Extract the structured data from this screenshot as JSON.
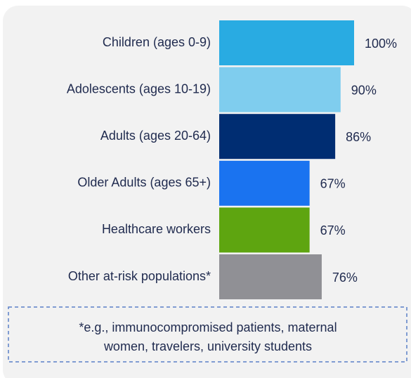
{
  "chart_data": {
    "type": "bar",
    "orientation": "horizontal",
    "categories": [
      "Children (ages 0-9)",
      "Adolescents (ages 10-19)",
      "Adults (ages 20-64)",
      "Older Adults (ages 65+)",
      "Healthcare workers",
      "Other at-risk populations*"
    ],
    "values": [
      100,
      90,
      86,
      67,
      67,
      76
    ],
    "value_labels": [
      "100%",
      "90%",
      "86%",
      "67%",
      "67%",
      "76%"
    ],
    "colors": [
      "#29abe2",
      "#7fcdee",
      "#002d72",
      "#1a73f0",
      "#5ea510",
      "#909095"
    ],
    "xlim": [
      0,
      100
    ],
    "annotation": [
      "*e.g., immunocompromised patients, maternal",
      "women, travelers, university students"
    ]
  }
}
